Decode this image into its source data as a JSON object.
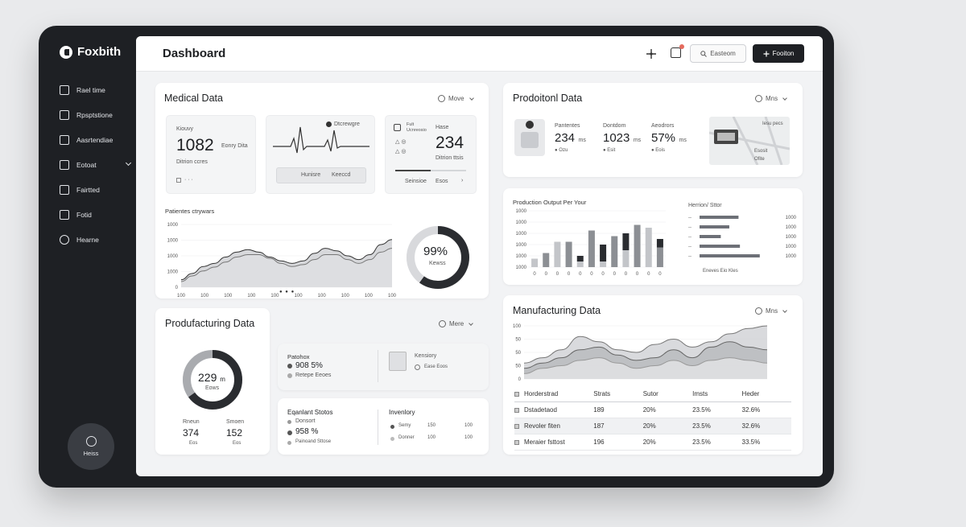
{
  "brand": "Foxbith",
  "sidebar": {
    "items": [
      {
        "label": "Rael time"
      },
      {
        "label": "Rpsptstione"
      },
      {
        "label": "Aasrtendiae"
      },
      {
        "label": "Eotoat"
      },
      {
        "label": "Fairtted"
      },
      {
        "label": "Fotid"
      },
      {
        "label": "Hearne"
      }
    ],
    "help_label": "Heiss"
  },
  "header": {
    "title": "Dashboard",
    "search_label": "Easteom",
    "button_label": "Fooiton"
  },
  "medical": {
    "title": "Medical Data",
    "more": "Move",
    "stat1": {
      "label": "Kiouvy",
      "value": "1082",
      "unit": "Eonry Dita",
      "sub": "Ditrion ccres"
    },
    "ecg": {
      "label": "Dtcrewgre",
      "footer_left": "Hunisre",
      "footer_right": "Keeccd"
    },
    "stat2": {
      "label1": "Fult",
      "label2": "Ucnreosio",
      "label3": "Hase",
      "value": "234",
      "sub": "Ditrion ttsis",
      "footer_left": "Seinsioe",
      "footer_right": "Esos"
    },
    "trend_title": "Patientes ctrywars",
    "trend_y": [
      "1000",
      "1000",
      "1000",
      "1000",
      "0"
    ],
    "trend_x": [
      "100",
      "100",
      "100",
      "100",
      "100",
      "100",
      "100",
      "100",
      "100",
      "100"
    ],
    "donut_value": "99%",
    "donut_label": "Kewss"
  },
  "productional": {
    "title": "Prodoitonl Data",
    "more": "Mns",
    "stats": [
      {
        "label": "Pantentes",
        "value": "234",
        "unit": "ms",
        "sub": "Ozu"
      },
      {
        "label": "Dontdom",
        "value": "1023",
        "unit": "ms",
        "sub": "Esit"
      },
      {
        "label": "Aeodrors",
        "value": "57%",
        "unit": "ms",
        "sub": "Eois"
      }
    ],
    "map_legend": [
      "Iesu pecs",
      "Esosit",
      "Ofite"
    ]
  },
  "production_output": {
    "title": "Production Output Per Your",
    "y_ticks": [
      "1000",
      "1000",
      "1000",
      "1000",
      "1000",
      "1000"
    ],
    "x_ticks": [
      "0",
      "0",
      "0",
      "0",
      "0",
      "0",
      "0",
      "0",
      "0",
      "0",
      "0",
      "0"
    ],
    "hbar_title": "Herrion/ Sttor",
    "hbar_values": [
      "1000",
      "1000",
      "1000",
      "1000",
      "1000"
    ],
    "hbar_footer": "Eneves   Eio Kles"
  },
  "productfacturing": {
    "title": "Produfacturing Data",
    "more": "Mere",
    "donut_value": "229",
    "donut_unit": "m",
    "donut_label": "Eows",
    "left_label": "Rneun",
    "left_value": "374",
    "left_sub": "Eos",
    "right_label": "Smoen",
    "right_value": "152",
    "right_sub": "Eos",
    "patch": {
      "title": "Patohox",
      "value": "908 5%",
      "sub": "Retepe Eeoes"
    },
    "kensiory": {
      "title": "Kensiory",
      "sub": "Ease Eoos"
    },
    "equipment": {
      "title": "Eqanlant Stotos",
      "line1": "Donsort",
      "value": "958 %",
      "line2": "Painoand Sttose"
    },
    "inventory": {
      "title": "Invenlory",
      "rows": [
        {
          "name": "Semy",
          "a": "150",
          "b": "100"
        },
        {
          "name": "Donner",
          "a": "100",
          "b": "100"
        }
      ]
    }
  },
  "manufacturing": {
    "title": "Manufacturing Data",
    "more": "Mns",
    "y_ticks": [
      "100",
      "50",
      "50",
      "50",
      "0"
    ],
    "table": {
      "headers": [
        "Horderstrad",
        "Strats",
        "Sutor",
        "Imsts",
        "Heder"
      ],
      "rows": [
        [
          "Dstadetaod",
          "189",
          "20%",
          "23.5%",
          "32.6%"
        ],
        [
          "Revoler fiten",
          "187",
          "20%",
          "23.5%",
          "32.6%"
        ],
        [
          "Meraier fsttost",
          "196",
          "20%",
          "23.5%",
          "33.5%"
        ]
      ]
    }
  },
  "chart_data": [
    {
      "type": "area",
      "title": "Patientes ctrywars",
      "x": [
        1,
        2,
        3,
        4,
        5,
        6,
        7,
        8,
        9,
        10,
        11,
        12,
        13,
        14,
        15,
        16,
        17,
        18,
        19,
        20
      ],
      "series": [
        {
          "values": [
            120,
            220,
            330,
            380,
            480,
            560,
            600,
            560,
            480,
            420,
            380,
            420,
            540,
            620,
            580,
            500,
            440,
            520,
            680,
            760
          ]
        },
        {
          "values": [
            90,
            180,
            260,
            320,
            400,
            480,
            520,
            520,
            460,
            380,
            330,
            360,
            440,
            520,
            520,
            440,
            380,
            440,
            560,
            620
          ]
        }
      ],
      "ylim": [
        0,
        1000
      ]
    },
    {
      "type": "bar",
      "title": "Production Output Per Your",
      "categories": [
        "1",
        "2",
        "3",
        "4",
        "5",
        "6",
        "7",
        "8",
        "9",
        "10",
        "11",
        "12"
      ],
      "series": [
        {
          "values": [
            15,
            25,
            45,
            45,
            10,
            65,
            10,
            55,
            30,
            75,
            70,
            35
          ]
        },
        {
          "values": [
            0,
            0,
            0,
            0,
            10,
            0,
            30,
            0,
            30,
            0,
            0,
            15
          ]
        }
      ],
      "ylim": [
        0,
        100
      ]
    },
    {
      "type": "bar",
      "title": "Herrion/ Sttor",
      "orientation": "horizontal",
      "values": [
        55,
        42,
        30,
        57,
        85
      ],
      "xlim": [
        0,
        100
      ]
    },
    {
      "type": "area",
      "title": "Manufacturing Data",
      "x": [
        1,
        2,
        3,
        4,
        5,
        6,
        7,
        8,
        9,
        10,
        11,
        12,
        13,
        14
      ],
      "series": [
        {
          "values": [
            30,
            40,
            55,
            80,
            70,
            55,
            50,
            65,
            75,
            60,
            70,
            85,
            95,
            100
          ]
        },
        {
          "values": [
            20,
            30,
            40,
            55,
            60,
            45,
            35,
            40,
            55,
            40,
            60,
            70,
            60,
            55
          ]
        },
        {
          "values": [
            10,
            20,
            25,
            35,
            40,
            30,
            20,
            25,
            35,
            25,
            35,
            40,
            35,
            30
          ]
        }
      ],
      "ylim": [
        0,
        100
      ]
    },
    {
      "type": "pie",
      "title": "",
      "values": [
        99,
        1
      ],
      "labels": [
        "99%",
        ""
      ]
    },
    {
      "type": "pie",
      "title": "",
      "values": [
        65,
        35
      ],
      "labels": [
        "229",
        ""
      ]
    }
  ]
}
